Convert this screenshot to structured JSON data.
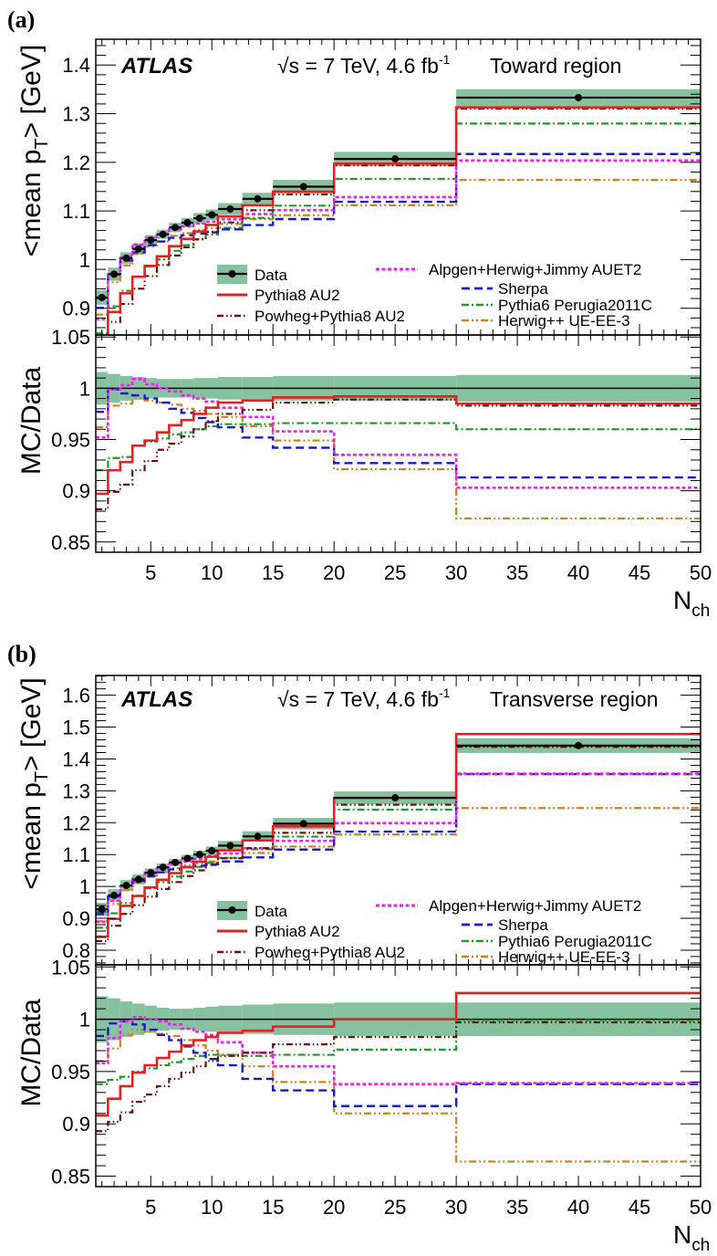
{
  "legend": {
    "data": "Data",
    "series_order": [
      "Pythia8 AU2",
      "Powheg+Pythia8 AU2",
      "Alpgen+Herwig+Jimmy AUET2",
      "Sherpa",
      "Pythia6 Perugia2011C",
      "Herwig++ UE-EE-3"
    ]
  },
  "colors": {
    "band": "#86c2a0",
    "data": "#000000",
    "Pythia8 AU2": "#e02222",
    "Powheg+Pythia8 AU2": "#6a1212",
    "Alpgen+Herwig+Jimmy AUET2": "#ee22ee",
    "Sherpa": "#1a1acc",
    "Pythia6 Perugia2011C": "#229a2a",
    "Herwig++ UE-EE-3": "#d08020"
  },
  "chart_data": [
    {
      "type": "line",
      "panel_label": "(a)",
      "experiment": "ATLAS",
      "energy_text": "√s = 7 TeV, 4.6 fb",
      "lumi_exp": "-1",
      "region": "Toward region",
      "xlabel": "N",
      "xlabel_sub": "ch",
      "ylabel_main_pre": "<mean p",
      "ylabel_main_sub": "T",
      "ylabel_main_post": "> [GeV]",
      "ylabel_ratio": "MC/Data",
      "xlim": [
        0.5,
        50
      ],
      "ylim_main": [
        0.845,
        1.453
      ],
      "ylim_ratio": [
        0.84,
        1.052
      ],
      "xticks": [
        "5",
        "10",
        "15",
        "20",
        "25",
        "30",
        "35",
        "40",
        "45",
        "50"
      ],
      "yticks_main": [
        "0.9",
        "1",
        "1.1",
        "1.2",
        "1.3",
        "1.4"
      ],
      "yticks_ratio": [
        "0.85",
        "0.9",
        "0.95",
        "1",
        "1.05"
      ],
      "bin_edges": [
        0.5,
        1.5,
        2.5,
        3.5,
        4.5,
        5.5,
        6.5,
        7.5,
        8.5,
        9.5,
        10.5,
        12.5,
        15,
        20,
        30,
        50
      ],
      "data_x": [
        1,
        2,
        3,
        4,
        5,
        6,
        7,
        8,
        9,
        10,
        11.5,
        13.75,
        17.5,
        25,
        40
      ],
      "data_y": [
        0.922,
        0.97,
        1.003,
        1.022,
        1.04,
        1.052,
        1.066,
        1.076,
        1.085,
        1.092,
        1.104,
        1.125,
        1.15,
        1.207,
        1.333
      ],
      "data_rel_unc": [
        0.016,
        0.014,
        0.012,
        0.011,
        0.01,
        0.009,
        0.009,
        0.009,
        0.01,
        0.01,
        0.011,
        0.011,
        0.012,
        0.012,
        0.013
      ],
      "series": [
        {
          "name": "Pythia8 AU2",
          "ratio": [
            0.897,
            0.92,
            0.928,
            0.944,
            0.949,
            0.957,
            0.964,
            0.969,
            0.975,
            0.981,
            0.986,
            0.988,
            0.991,
            0.992,
            0.985
          ]
        },
        {
          "name": "Powheg+Pythia8 AU2",
          "ratio": [
            0.882,
            0.899,
            0.906,
            0.92,
            0.929,
            0.94,
            0.946,
            0.953,
            0.96,
            0.968,
            0.975,
            0.979,
            0.986,
            0.989,
            0.983
          ]
        },
        {
          "name": "Alpgen+Herwig+Jimmy AUET2",
          "ratio": [
            0.952,
            0.999,
            1.003,
            1.009,
            1.004,
            1.0,
            0.997,
            0.993,
            0.99,
            0.987,
            0.981,
            0.972,
            0.958,
            0.935,
            0.903
          ]
        },
        {
          "name": "Sherpa",
          "ratio": [
            0.977,
            0.999,
            0.995,
            0.993,
            0.99,
            0.986,
            0.98,
            0.976,
            0.971,
            0.967,
            0.962,
            0.952,
            0.942,
            0.927,
            0.913
          ]
        },
        {
          "name": "Pythia6 Perugia2011C",
          "ratio": [
            0.92,
            0.932,
            0.933,
            0.944,
            0.948,
            0.951,
            0.955,
            0.957,
            0.96,
            0.963,
            0.965,
            0.965,
            0.966,
            0.966,
            0.96
          ]
        },
        {
          "name": "Herwig++ UE-EE-3",
          "ratio": [
            0.962,
            0.983,
            0.985,
            0.99,
            0.988,
            0.986,
            0.984,
            0.98,
            0.978,
            0.975,
            0.972,
            0.963,
            0.949,
            0.921,
            0.873
          ]
        }
      ]
    },
    {
      "type": "line",
      "panel_label": "(b)",
      "experiment": "ATLAS",
      "energy_text": "√s = 7 TeV, 4.6 fb",
      "lumi_exp": "-1",
      "region": "Transverse region",
      "xlabel": "N",
      "xlabel_sub": "ch",
      "ylabel_main_pre": "<mean p",
      "ylabel_main_sub": "T",
      "ylabel_main_post": "> [GeV]",
      "ylabel_ratio": "MC/Data",
      "xlim": [
        0.5,
        50
      ],
      "ylim_main": [
        0.754,
        1.662
      ],
      "ylim_ratio": [
        0.84,
        1.052
      ],
      "xticks": [
        "5",
        "10",
        "15",
        "20",
        "25",
        "30",
        "35",
        "40",
        "45",
        "50"
      ],
      "yticks_main": [
        "0.8",
        "0.9",
        "1",
        "1.1",
        "1.2",
        "1.3",
        "1.4",
        "1.5",
        "1.6"
      ],
      "yticks_ratio": [
        "0.85",
        "0.9",
        "0.95",
        "1",
        "1.05"
      ],
      "bin_edges": [
        0.5,
        1.5,
        2.5,
        3.5,
        4.5,
        5.5,
        6.5,
        7.5,
        8.5,
        9.5,
        10.5,
        12.5,
        15,
        20,
        30,
        50
      ],
      "data_x": [
        1,
        2,
        3,
        4,
        5,
        6,
        7,
        8,
        9,
        10,
        11.5,
        13.75,
        17.5,
        25,
        40
      ],
      "data_y": [
        0.928,
        0.972,
        1.003,
        1.022,
        1.043,
        1.06,
        1.075,
        1.088,
        1.1,
        1.112,
        1.128,
        1.157,
        1.197,
        1.278,
        1.442
      ],
      "data_rel_unc": [
        0.022,
        0.02,
        0.017,
        0.015,
        0.013,
        0.011,
        0.01,
        0.01,
        0.011,
        0.012,
        0.013,
        0.014,
        0.015,
        0.016,
        0.016
      ],
      "series": [
        {
          "name": "Pythia8 AU2",
          "ratio": [
            0.908,
            0.924,
            0.936,
            0.949,
            0.956,
            0.963,
            0.969,
            0.975,
            0.98,
            0.983,
            0.987,
            0.989,
            0.993,
            1.0,
            1.025
          ]
        },
        {
          "name": "Powheg+Pythia8 AU2",
          "ratio": [
            0.893,
            0.902,
            0.911,
            0.921,
            0.928,
            0.936,
            0.943,
            0.949,
            0.955,
            0.96,
            0.965,
            0.968,
            0.976,
            0.983,
            0.997
          ]
        },
        {
          "name": "Alpgen+Herwig+Jimmy AUET2",
          "ratio": [
            0.958,
            0.982,
            0.998,
            1.002,
            1.0,
            0.998,
            0.995,
            0.991,
            0.988,
            0.985,
            0.978,
            0.968,
            0.955,
            0.938,
            0.939
          ]
        },
        {
          "name": "Sherpa",
          "ratio": [
            0.984,
            0.996,
            0.998,
            0.995,
            0.99,
            0.985,
            0.98,
            0.974,
            0.968,
            0.962,
            0.956,
            0.943,
            0.932,
            0.917,
            0.938
          ]
        },
        {
          "name": "Pythia6 Perugia2011C",
          "ratio": [
            0.938,
            0.942,
            0.945,
            0.95,
            0.953,
            0.956,
            0.959,
            0.962,
            0.965,
            0.966,
            0.966,
            0.965,
            0.966,
            0.971,
            0.999
          ]
        },
        {
          "name": "Herwig++ UE-EE-3",
          "ratio": [
            0.96,
            0.972,
            0.985,
            0.99,
            0.988,
            0.986,
            0.984,
            0.98,
            0.975,
            0.97,
            0.966,
            0.955,
            0.94,
            0.91,
            0.864
          ]
        }
      ]
    }
  ]
}
